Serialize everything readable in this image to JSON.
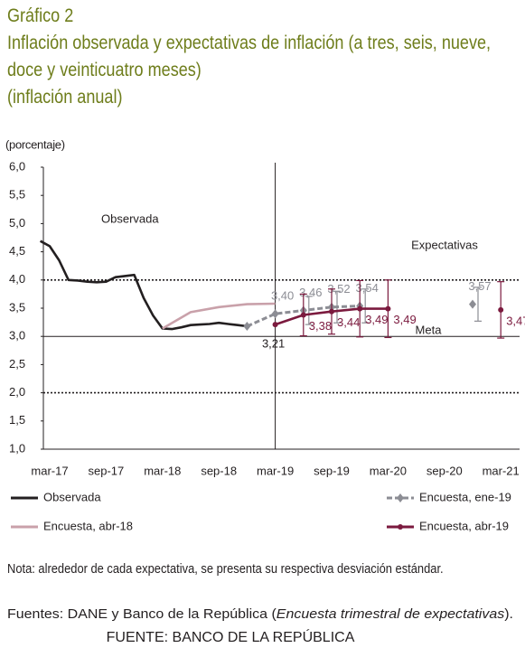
{
  "chart_data": {
    "type": "line",
    "kicker": "Gráfico 2",
    "title": "Inflación observada y expectativas de inflación (a tres, seis, nueve, doce y veinticuatro meses)",
    "subtitle": "(inflación anual)",
    "y_label": "(porcentaje)",
    "xticks": [
      "mar-17",
      "sep-17",
      "mar-18",
      "sep-18",
      "mar-19",
      "sep-19",
      "mar-20",
      "sep-20",
      "mar-21"
    ],
    "ylim": [
      1,
      6
    ],
    "yticks": [
      {
        "value": 1,
        "label": "1,0"
      },
      {
        "value": 1.5,
        "label": "1,5"
      },
      {
        "value": 2,
        "label": "2,0"
      },
      {
        "value": 2.5,
        "label": "2,5"
      },
      {
        "value": 3,
        "label": "3,0"
      },
      {
        "value": 3.5,
        "label": "3,5"
      },
      {
        "value": 4,
        "label": "4,0"
      },
      {
        "value": 4.5,
        "label": "4,5"
      },
      {
        "value": 5,
        "label": "5,0"
      },
      {
        "value": 5.5,
        "label": "5,5"
      },
      {
        "value": 6,
        "label": "6,0"
      }
    ],
    "reference_lines": [
      {
        "value": 4,
        "style": "dotted"
      },
      {
        "value": 2,
        "style": "dotted"
      },
      {
        "value": 3,
        "style": "solid"
      }
    ],
    "vline": "mar-19",
    "annotations": [
      "Observada",
      "Expectativas",
      "Meta"
    ],
    "series": [
      {
        "name": "Observada",
        "color": "#231f20",
        "style": "solid",
        "x": [
          "feb-17",
          "mar-17",
          "abr-17",
          "may-17",
          "jun-17",
          "jul-17",
          "ago-17",
          "sep-17",
          "oct-17",
          "nov-17",
          "dic-17",
          "ene-18",
          "feb-18",
          "mar-18",
          "abr-18",
          "may-18",
          "jun-18",
          "jul-18",
          "ago-18",
          "sep-18",
          "oct-18",
          "nov-18",
          "dic-18"
        ],
        "values": [
          4.69,
          4.6,
          4.35,
          4.0,
          3.99,
          3.97,
          3.96,
          3.97,
          4.05,
          4.07,
          4.09,
          3.68,
          3.37,
          3.14,
          3.13,
          3.16,
          3.2,
          3.21,
          3.22,
          3.24,
          3.22,
          3.2,
          3.18
        ]
      },
      {
        "name": "Encuesta, abr-18",
        "color": "#c9a1aa",
        "style": "solid",
        "x": [
          "mar-18",
          "jun-18",
          "sep-18",
          "dic-18",
          "mar-19"
        ],
        "values": [
          3.14,
          3.43,
          3.52,
          3.57,
          3.58
        ]
      },
      {
        "name": "Encuesta, ene-19",
        "color": "#8c8d94",
        "style": "dashed",
        "marker": "diamond",
        "x": [
          "dic-18",
          "mar-19",
          "jun-19",
          "sep-19",
          "dic-19",
          "jun-20",
          "dic-20"
        ],
        "values": [
          3.18,
          3.4,
          3.46,
          3.52,
          3.54,
          null,
          3.57
        ],
        "value_labels": [
          null,
          "3,40",
          "3,46",
          "3,52",
          "3,54",
          null,
          "3,57"
        ],
        "errors": [
          null,
          null,
          0.25,
          0.28,
          0.3,
          null,
          0.3
        ]
      },
      {
        "name": "Encuesta, abr-19",
        "color": "#7b1a3e",
        "style": "solid",
        "marker": "circle",
        "x": [
          "mar-19",
          "jun-19",
          "sep-19",
          "dic-19",
          "mar-20",
          "sep-20",
          "mar-21"
        ],
        "values": [
          3.21,
          3.38,
          3.44,
          3.49,
          3.49,
          null,
          3.47
        ],
        "value_labels": [
          "3,21",
          "3,38",
          "3,44",
          "3,49",
          "3,49",
          null,
          "3,47"
        ],
        "errors": [
          null,
          0.37,
          0.4,
          0.5,
          0.51,
          null,
          0.5
        ]
      }
    ]
  },
  "note": "Nota: alrededor de cada expectativa, se presenta su respectiva desviación estándar.",
  "sources": {
    "prefix": "Fuentes: DANE y Banco de la República (",
    "italic": "Encuesta trimestral de expectativas",
    "suffix": ")."
  },
  "footer": "FUENTE: BANCO DE LA REPÚBLICA"
}
